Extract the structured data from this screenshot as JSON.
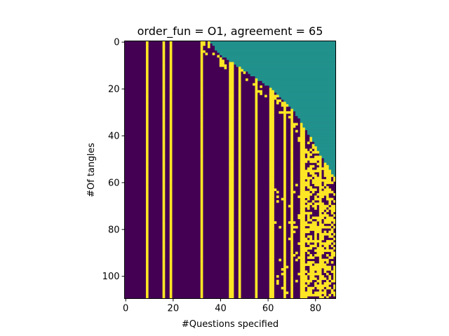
{
  "chart_data": {
    "type": "heatmap",
    "title": "order_fun = O1, agreement = 65",
    "xlabel": "#Questions specified",
    "ylabel": "#Of tangles",
    "n_questions": 89,
    "n_tangles": 110,
    "x_ticks": [
      0,
      20,
      40,
      60,
      80
    ],
    "y_ticks": [
      0,
      20,
      40,
      60,
      80,
      100
    ],
    "colors": {
      "zero": "#440154",
      "one": "#fde725",
      "unspecified": "#21918c"
    },
    "always_yes_columns": [
      9,
      16,
      19,
      32,
      44,
      45,
      48,
      55,
      61,
      62,
      67,
      70,
      74,
      75,
      82
    ],
    "unspecified_boundary": [
      {
        "row": 0,
        "first_unspecified_col": 36
      },
      {
        "row": 1,
        "first_unspecified_col": 37
      },
      {
        "row": 3,
        "first_unspecified_col": 38
      },
      {
        "row": 5,
        "first_unspecified_col": 40
      },
      {
        "row": 8,
        "first_unspecified_col": 44
      },
      {
        "row": 12,
        "first_unspecified_col": 50
      },
      {
        "row": 16,
        "first_unspecified_col": 56
      },
      {
        "row": 20,
        "first_unspecified_col": 62
      },
      {
        "row": 24,
        "first_unspecified_col": 66
      },
      {
        "row": 28,
        "first_unspecified_col": 70
      },
      {
        "row": 32,
        "first_unspecified_col": 73
      },
      {
        "row": 36,
        "first_unspecified_col": 75
      },
      {
        "row": 40,
        "first_unspecified_col": 78
      },
      {
        "row": 44,
        "first_unspecified_col": 80
      },
      {
        "row": 48,
        "first_unspecified_col": 82
      },
      {
        "row": 52,
        "first_unspecified_col": 85
      },
      {
        "row": 56,
        "first_unspecified_col": 87
      },
      {
        "row": 58,
        "first_unspecified_col": 89
      }
    ],
    "dense_yes_region": {
      "from_row": 44,
      "from_col": 74,
      "density": 0.55
    },
    "scattered_yes_density": 0.08,
    "seed": 65
  }
}
